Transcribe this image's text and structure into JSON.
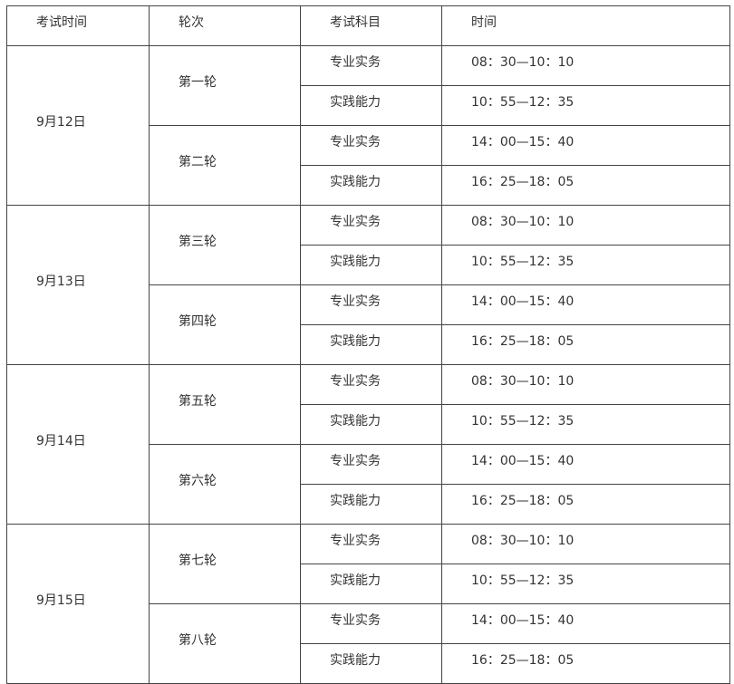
{
  "headers": [
    "考试时间",
    "轮次",
    "考试科目",
    "时间"
  ],
  "days": [
    {
      "date": "9月12日",
      "rounds": [
        {
          "name": "第一轮",
          "sessions": [
            {
              "subject": "专业实务",
              "time": "08：30—10：10"
            },
            {
              "subject": "实践能力",
              "time": "10：55—12：35"
            }
          ]
        },
        {
          "name": "第二轮",
          "sessions": [
            {
              "subject": "专业实务",
              "time": "14：00—15：40"
            },
            {
              "subject": "实践能力",
              "time": "16：25—18：05"
            }
          ]
        }
      ]
    },
    {
      "date": "9月13日",
      "rounds": [
        {
          "name": "第三轮",
          "sessions": [
            {
              "subject": "专业实务",
              "time": "08：30—10：10"
            },
            {
              "subject": "实践能力",
              "time": "10：55—12：35"
            }
          ]
        },
        {
          "name": "第四轮",
          "sessions": [
            {
              "subject": "专业实务",
              "time": "14：00—15：40"
            },
            {
              "subject": "实践能力",
              "time": "16：25—18：05"
            }
          ]
        }
      ]
    },
    {
      "date": "9月14日",
      "rounds": [
        {
          "name": "第五轮",
          "sessions": [
            {
              "subject": "专业实务",
              "time": "08：30—10：10"
            },
            {
              "subject": "实践能力",
              "time": "10：55—12：35"
            }
          ]
        },
        {
          "name": "第六轮",
          "sessions": [
            {
              "subject": "专业实务",
              "time": "14：00—15：40"
            },
            {
              "subject": "实践能力",
              "time": "16：25—18：05"
            }
          ]
        }
      ]
    },
    {
      "date": "9月15日",
      "rounds": [
        {
          "name": "第七轮",
          "sessions": [
            {
              "subject": "专业实务",
              "time": "08：30—10：10"
            },
            {
              "subject": "实践能力",
              "time": "10：55—12：35"
            }
          ]
        },
        {
          "name": "第八轮",
          "sessions": [
            {
              "subject": "专业实务",
              "time": "14：00—15：40"
            },
            {
              "subject": "实践能力",
              "time": "16：25—18：05"
            }
          ]
        }
      ]
    }
  ]
}
